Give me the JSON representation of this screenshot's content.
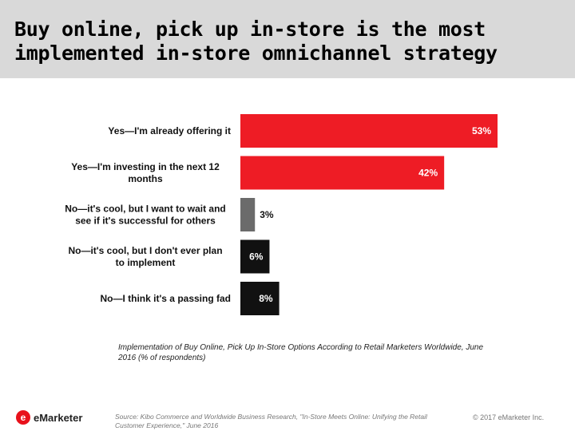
{
  "header": {
    "title": "Buy online, pick up in-store is the most\nimplemented in-store omnichannel strategy"
  },
  "chart_data": {
    "type": "bar",
    "orientation": "horizontal",
    "categories": [
      [
        "Yes—I'm already offering it"
      ],
      [
        "Yes—I'm investing in the next 12",
        "months"
      ],
      [
        "No—it's cool, but I want to wait and",
        "see if it's successful for others"
      ],
      [
        "No—it's cool, but I don't ever plan",
        "to implement"
      ],
      [
        "No—I think it's a passing fad"
      ]
    ],
    "values": [
      53,
      42,
      3,
      6,
      8
    ],
    "value_labels": [
      "53%",
      "42%",
      "3%",
      "6%",
      "8%"
    ],
    "bar_colors": [
      "#ee1c25",
      "#ee1c25",
      "#6b6b6b",
      "#111111",
      "#111111"
    ],
    "caption": "Implementation of Buy Online, Pick Up In-Store Options According to Retail Marketers Worldwide, June 2016 (% of respondents)",
    "xlim": [
      0,
      53
    ]
  },
  "footer": {
    "logo_mark": "e",
    "logo_text": "eMarketer",
    "source": "Source: Kibo Commerce and Worldwide Business Research, \"In-Store Meets Online: Unifying the Retail Customer Experience,\" June 2016",
    "copyright": "© 2017 eMarketer Inc."
  },
  "colors": {
    "accent": "#ee1c25",
    "header_bg": "#d9d9d9"
  }
}
